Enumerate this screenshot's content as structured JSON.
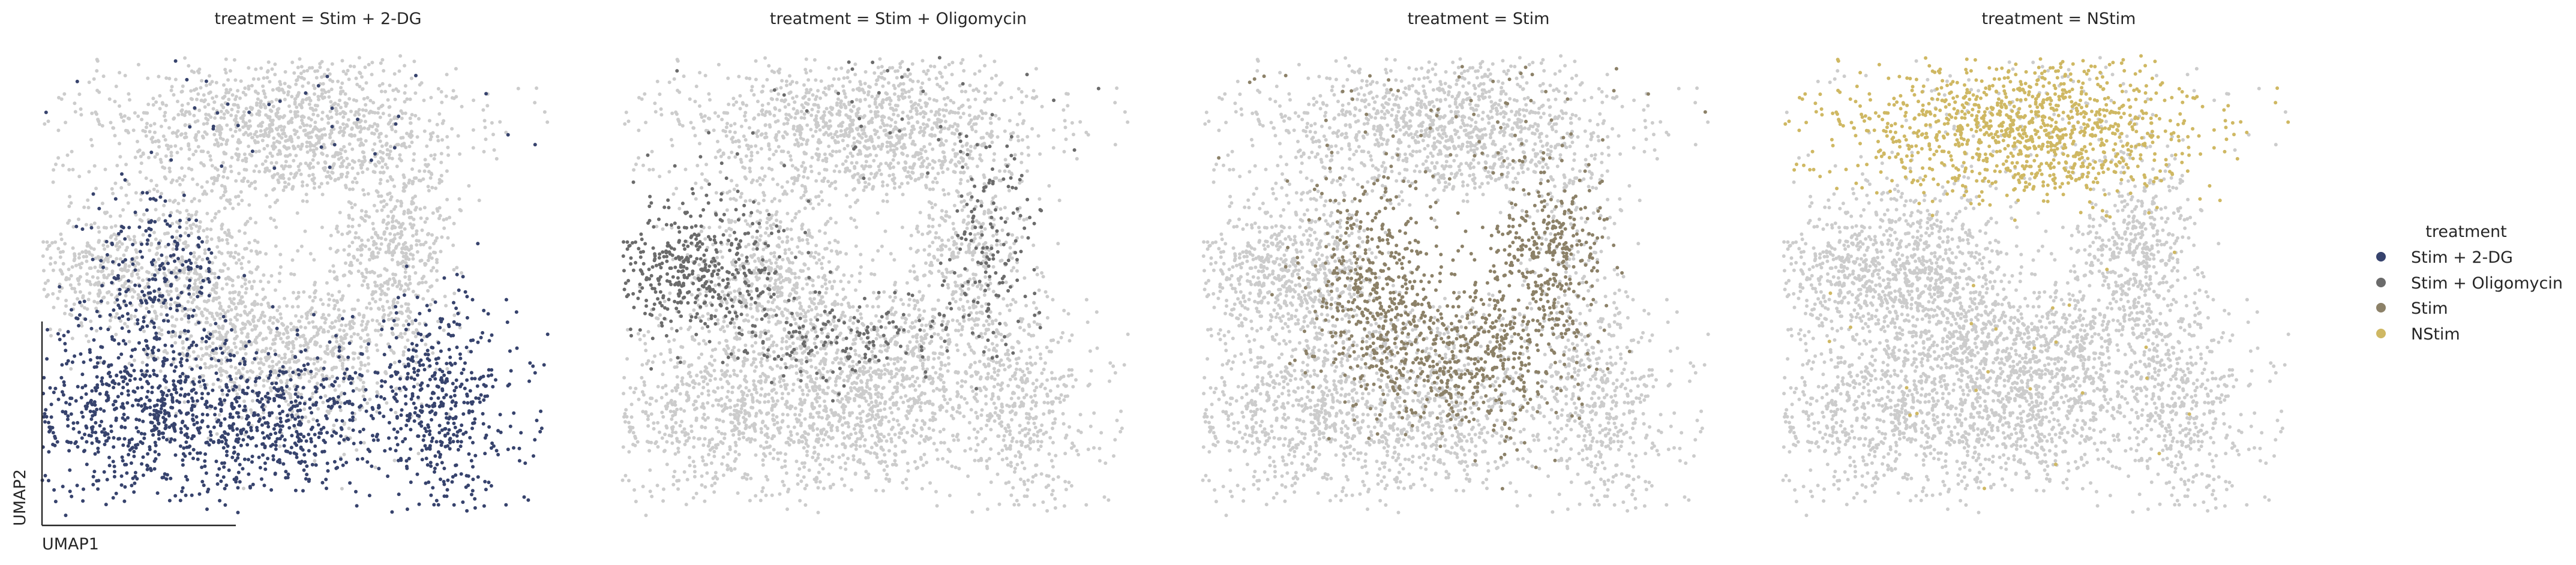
{
  "chart_data": {
    "type": "scatter",
    "title": "",
    "xlabel": "UMAP1",
    "ylabel": "UMAP2",
    "grid": false,
    "legend": {
      "title": "treatment",
      "position": "right",
      "entries": [
        {
          "label": "Stim + 2-DG",
          "color": "#37436d"
        },
        {
          "label": "Stim + Oligomycin",
          "color": "#6b6b6b"
        },
        {
          "label": "Stim",
          "color": "#8c8168"
        },
        {
          "label": "NStim",
          "color": "#cfb863"
        }
      ]
    },
    "background_color": "#cccccc",
    "panels": [
      {
        "title": "treatment = Stim + 2-DG",
        "highlight": "Stim + 2-DG",
        "color": "#37436d"
      },
      {
        "title": "treatment = Stim + Oligomycin",
        "highlight": "Stim + Oligomycin",
        "color": "#6b6b6b"
      },
      {
        "title": "treatment = Stim",
        "highlight": "Stim",
        "color": "#8c8168"
      },
      {
        "title": "treatment = NStim",
        "highlight": "NStim",
        "color": "#cfb863"
      }
    ]
  }
}
